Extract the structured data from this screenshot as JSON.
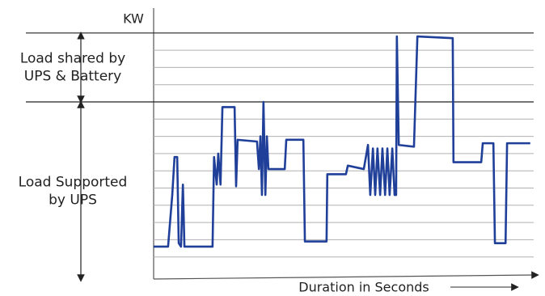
{
  "chart_data": {
    "type": "line",
    "y_label": "KW",
    "x_label": "Duration in Seconds",
    "annotations": [
      {
        "lines": [
          "Load shared by",
          "UPS & Battery"
        ],
        "from": 14,
        "to": 10
      },
      {
        "lines": [
          "Load Supported",
          "by UPS"
        ],
        "from": 10,
        "to": 0
      }
    ],
    "xlim": [
      0,
      100
    ],
    "ylim": [
      0,
      15
    ],
    "grid_lines": [
      1,
      2,
      3,
      4,
      5,
      6,
      7,
      8,
      9,
      11,
      12,
      13
    ],
    "reference_lines": [
      14,
      10
    ],
    "series": [
      {
        "color": "#1f3f99",
        "x": [
          0,
          3.8,
          4.9,
          5.5,
          6.2,
          6.6,
          7.2,
          7.7,
          8.1,
          15.5,
          15.9,
          16.6,
          17.0,
          17.6,
          18.1,
          21.3,
          21.7,
          22.1,
          27.2,
          27.7,
          28.1,
          28.5,
          28.9,
          29.4,
          29.8,
          30.2,
          34.5,
          34.9,
          39.4,
          39.8,
          45.5,
          45.7,
          50.6,
          51.1,
          55.3,
          56.4,
          57.0,
          57.7,
          58.3,
          58.9,
          59.6,
          60.2,
          60.9,
          61.5,
          62.1,
          62.8,
          63.4,
          63.8,
          64.0,
          64.5,
          68.5,
          69.4,
          78.7,
          78.9,
          86.2,
          86.6,
          89.4,
          89.8,
          92.6,
          93.0,
          99.1
        ],
        "values": [
          1.6,
          1.6,
          4.6,
          6.8,
          6.8,
          1.8,
          1.6,
          5.2,
          1.6,
          1.6,
          6.8,
          5.2,
          7.0,
          5.2,
          9.7,
          9.7,
          5.1,
          7.8,
          7.7,
          6.1,
          8.0,
          4.6,
          10.0,
          4.6,
          8.0,
          6.1,
          6.1,
          7.8,
          7.8,
          1.9,
          1.9,
          5.8,
          5.8,
          6.3,
          6.1,
          7.5,
          4.6,
          7.3,
          4.6,
          7.3,
          4.6,
          7.3,
          4.6,
          7.3,
          4.6,
          7.3,
          4.6,
          4.6,
          13.8,
          7.5,
          7.4,
          13.8,
          13.7,
          6.5,
          6.5,
          7.6,
          7.6,
          1.8,
          1.8,
          7.6,
          7.6
        ]
      }
    ]
  }
}
